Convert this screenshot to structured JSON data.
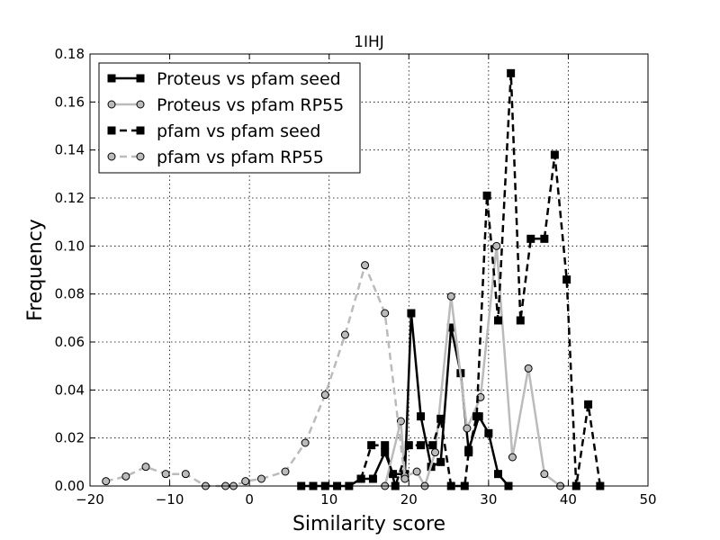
{
  "chart_data": {
    "type": "line",
    "title": "1IHJ",
    "xlabel": "Similarity score",
    "ylabel": "Frequency",
    "xlim": [
      -20,
      50
    ],
    "ylim": [
      0,
      0.18
    ],
    "xticks": [
      -20,
      -10,
      0,
      10,
      20,
      30,
      40,
      50
    ],
    "xtick_labels": [
      "−20",
      "−10",
      "0",
      "10",
      "20",
      "30",
      "40",
      "50"
    ],
    "yticks": [
      0,
      0.02,
      0.04,
      0.06,
      0.08,
      0.1,
      0.12,
      0.14,
      0.16,
      0.18
    ],
    "ytick_labels": [
      "0.00",
      "0.02",
      "0.04",
      "0.06",
      "0.08",
      "0.10",
      "0.12",
      "0.14",
      "0.16",
      "0.18"
    ],
    "grid": true,
    "legend_position": "top-left",
    "series": [
      {
        "name": "Proteus vs pfam seed",
        "color": "#000000",
        "marker": "square",
        "dash": "solid",
        "points": [
          [
            6.5,
            0
          ],
          [
            8,
            0
          ],
          [
            9.5,
            0
          ],
          [
            11,
            0
          ],
          [
            12.5,
            0
          ],
          [
            14,
            0.003
          ],
          [
            15.5,
            0.003
          ],
          [
            17,
            0.014
          ],
          [
            18,
            0.005
          ],
          [
            19.5,
            0.005
          ],
          [
            20.3,
            0.072
          ],
          [
            21.5,
            0.029
          ],
          [
            22.8,
            0.008
          ],
          [
            24,
            0.01
          ],
          [
            25.3,
            0.066
          ],
          [
            26.5,
            0.047
          ],
          [
            27.5,
            0.015
          ],
          [
            28.8,
            0.029
          ],
          [
            30,
            0.022
          ],
          [
            31.2,
            0.005
          ],
          [
            32.5,
            0
          ]
        ]
      },
      {
        "name": "Proteus vs pfam RP55",
        "color": "#bbbbbb",
        "marker": "circle",
        "dash": "solid",
        "points": [
          [
            17,
            0
          ],
          [
            19,
            0.027
          ],
          [
            19.5,
            0.004
          ],
          [
            21,
            0.006
          ],
          [
            22,
            0
          ],
          [
            23.3,
            0.014
          ],
          [
            25.3,
            0.079
          ],
          [
            27.3,
            0.024
          ],
          [
            29,
            0.037
          ],
          [
            31,
            0.1
          ],
          [
            33,
            0.012
          ],
          [
            35,
            0.049
          ],
          [
            37,
            0.005
          ],
          [
            39,
            0
          ]
        ]
      },
      {
        "name": "pfam vs pfam seed",
        "color": "#000000",
        "marker": "square",
        "dash": "dashed",
        "points": [
          [
            14,
            0.003
          ],
          [
            15.3,
            0.017
          ],
          [
            17,
            0.017
          ],
          [
            18.3,
            0
          ],
          [
            20,
            0.017
          ],
          [
            21.5,
            0.017
          ],
          [
            23,
            0.017
          ],
          [
            24,
            0.028
          ],
          [
            25.3,
            0
          ],
          [
            27,
            0
          ],
          [
            27.5,
            0.014
          ],
          [
            28.5,
            0.029
          ],
          [
            29.8,
            0.121
          ],
          [
            31.2,
            0.069
          ],
          [
            32.8,
            0.172
          ],
          [
            34,
            0.069
          ],
          [
            35.3,
            0.103
          ],
          [
            37,
            0.103
          ],
          [
            38.3,
            0.138
          ],
          [
            39.8,
            0.086
          ],
          [
            41,
            0
          ],
          [
            42.5,
            0.034
          ],
          [
            44,
            0
          ]
        ]
      },
      {
        "name": "pfam vs pfam RP55",
        "color": "#bbbbbb",
        "marker": "circle",
        "dash": "dashed",
        "points": [
          [
            -18,
            0.002
          ],
          [
            -15.5,
            0.004
          ],
          [
            -13,
            0.008
          ],
          [
            -10.5,
            0.005
          ],
          [
            -8,
            0.005
          ],
          [
            -5.5,
            0
          ],
          [
            -3,
            0
          ],
          [
            -2,
            0
          ],
          [
            -0.5,
            0.002
          ],
          [
            1.5,
            0.003
          ],
          [
            4.5,
            0.006
          ],
          [
            7,
            0.018
          ],
          [
            9.5,
            0.038
          ],
          [
            12,
            0.063
          ],
          [
            14.5,
            0.092
          ],
          [
            17,
            0.072
          ],
          [
            19.5,
            0.003
          ]
        ]
      }
    ]
  }
}
